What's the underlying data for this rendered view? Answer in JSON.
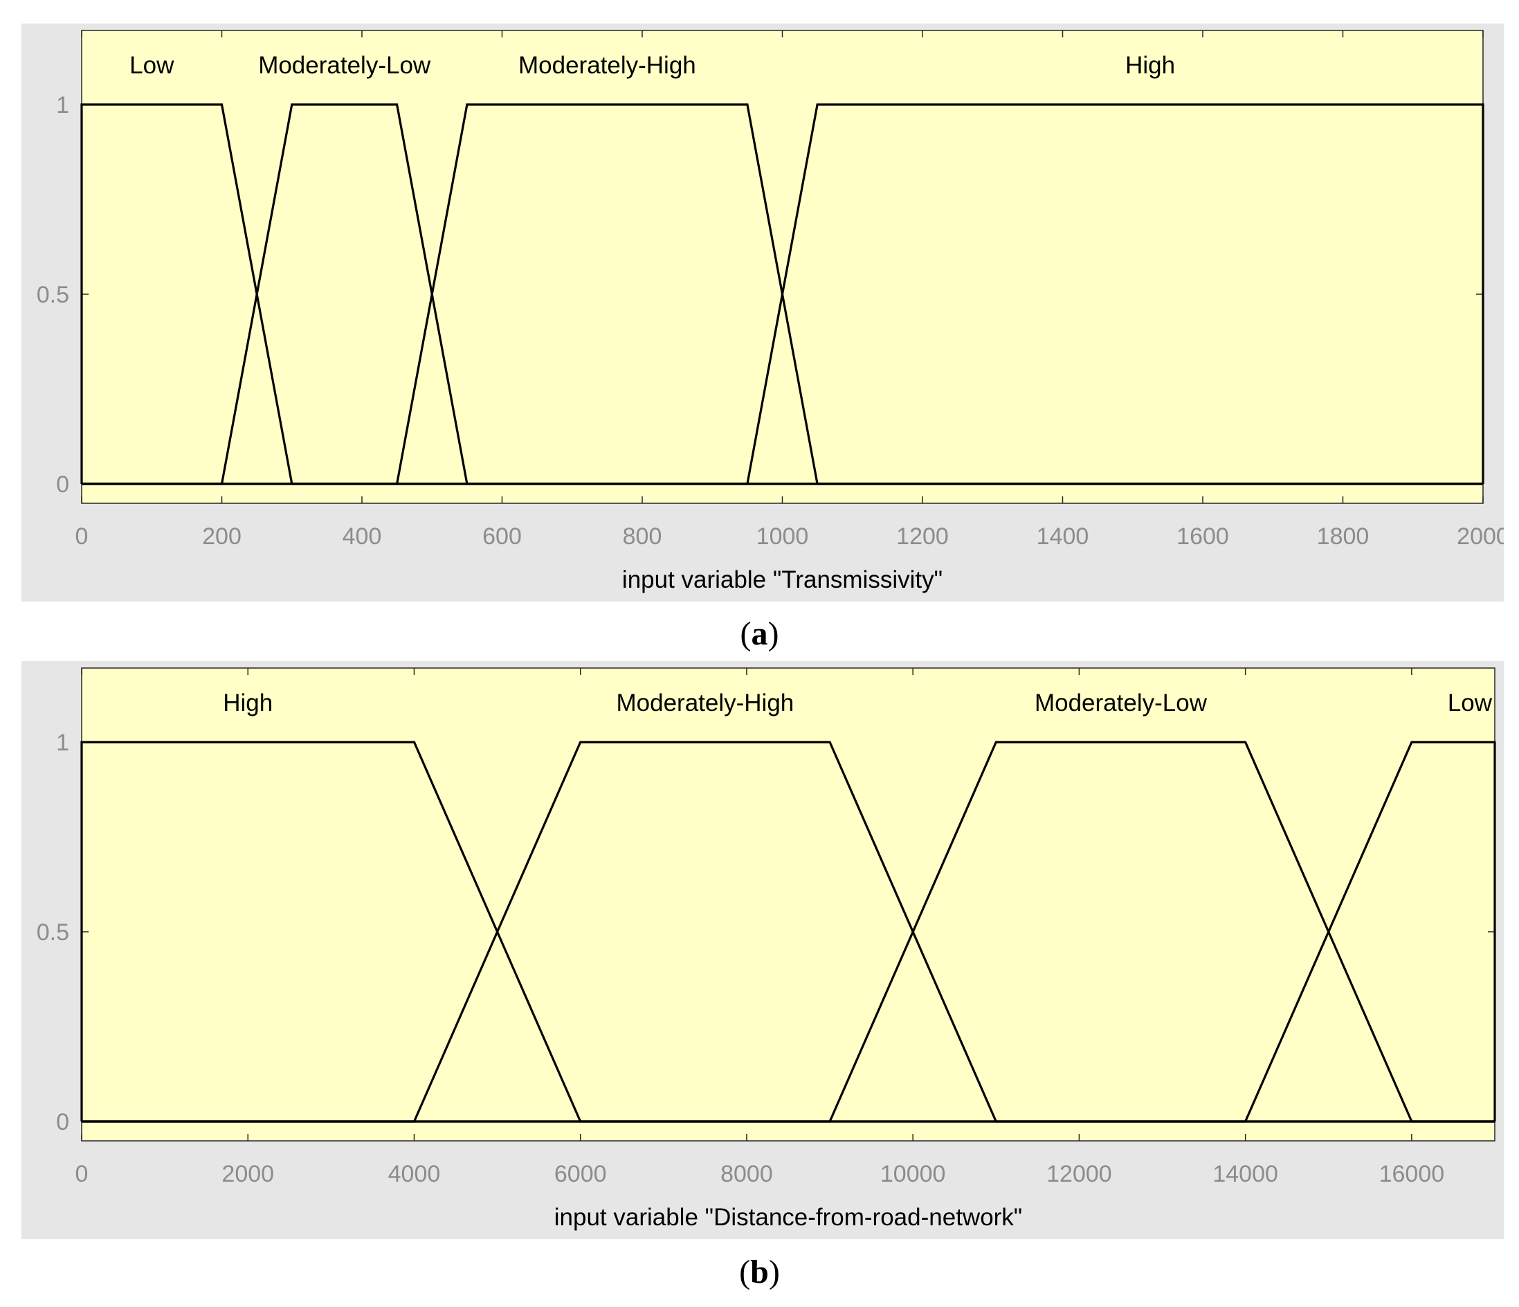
{
  "figure": {
    "captions": [
      {
        "open": "(",
        "letter": "a",
        "close": ")"
      },
      {
        "open": "(",
        "letter": "b",
        "close": ")"
      }
    ]
  },
  "colors": {
    "panel_bg": "#e6e6e6",
    "plot_bg": "#ffffc7",
    "line": "#000000",
    "tick_text": "#8c8c8c",
    "label_text": "#000000"
  },
  "chart_data": [
    {
      "type": "line",
      "chart_kind": "fuzzy-membership-functions",
      "xlabel": "input variable \"Transmissivity\"",
      "ylabel": "",
      "xlim": [
        0,
        2000
      ],
      "ylim": [
        0,
        1
      ],
      "xticks": [
        0,
        200,
        400,
        600,
        800,
        1000,
        1200,
        1400,
        1600,
        1800,
        2000
      ],
      "yticks": [
        0,
        0.5,
        1
      ],
      "ytick_labels": [
        "0",
        "0.5",
        "1"
      ],
      "grid": false,
      "legend": "none",
      "series": [
        {
          "name": "Low",
          "x": [
            0,
            0,
            200,
            300,
            2000
          ],
          "y": [
            0,
            1,
            1,
            0,
            0
          ]
        },
        {
          "name": "Moderately-Low",
          "x": [
            0,
            200,
            300,
            450,
            550,
            2000
          ],
          "y": [
            0,
            0,
            1,
            1,
            0,
            0
          ]
        },
        {
          "name": "Moderately-High",
          "x": [
            0,
            450,
            550,
            950,
            1050,
            2000
          ],
          "y": [
            0,
            0,
            1,
            1,
            0,
            0
          ]
        },
        {
          "name": "High",
          "x": [
            0,
            950,
            1050,
            2000,
            2000
          ],
          "y": [
            0,
            0,
            1,
            1,
            0
          ]
        }
      ],
      "mf_labels": [
        {
          "text": "Low",
          "x": 100
        },
        {
          "text": "Moderately-Low",
          "x": 375
        },
        {
          "text": "Moderately-High",
          "x": 750
        },
        {
          "text": "High",
          "x": 1525
        }
      ]
    },
    {
      "type": "line",
      "chart_kind": "fuzzy-membership-functions",
      "xlabel": "input variable \"Distance-from-road-network\"",
      "ylabel": "",
      "xlim": [
        0,
        17000
      ],
      "ylim": [
        0,
        1
      ],
      "xticks": [
        0,
        2000,
        4000,
        6000,
        8000,
        10000,
        12000,
        14000,
        16000
      ],
      "yticks": [
        0,
        0.5,
        1
      ],
      "ytick_labels": [
        "0",
        "0.5",
        "1"
      ],
      "grid": false,
      "legend": "none",
      "series": [
        {
          "name": "High",
          "x": [
            0,
            0,
            4000,
            6000,
            17000
          ],
          "y": [
            0,
            1,
            1,
            0,
            0
          ]
        },
        {
          "name": "Moderately-High",
          "x": [
            0,
            4000,
            6000,
            9000,
            11000,
            17000
          ],
          "y": [
            0,
            0,
            1,
            1,
            0,
            0
          ]
        },
        {
          "name": "Moderately-Low",
          "x": [
            0,
            9000,
            11000,
            14000,
            16000,
            17000
          ],
          "y": [
            0,
            0,
            1,
            1,
            0,
            0
          ]
        },
        {
          "name": "Low",
          "x": [
            0,
            14000,
            16000,
            17000,
            17000
          ],
          "y": [
            0,
            0,
            1,
            1,
            0
          ]
        }
      ],
      "mf_labels": [
        {
          "text": "High",
          "x": 2000
        },
        {
          "text": "Moderately-High",
          "x": 7500
        },
        {
          "text": "Moderately-Low",
          "x": 12500
        },
        {
          "text": "Low",
          "x": 16700
        }
      ]
    }
  ]
}
